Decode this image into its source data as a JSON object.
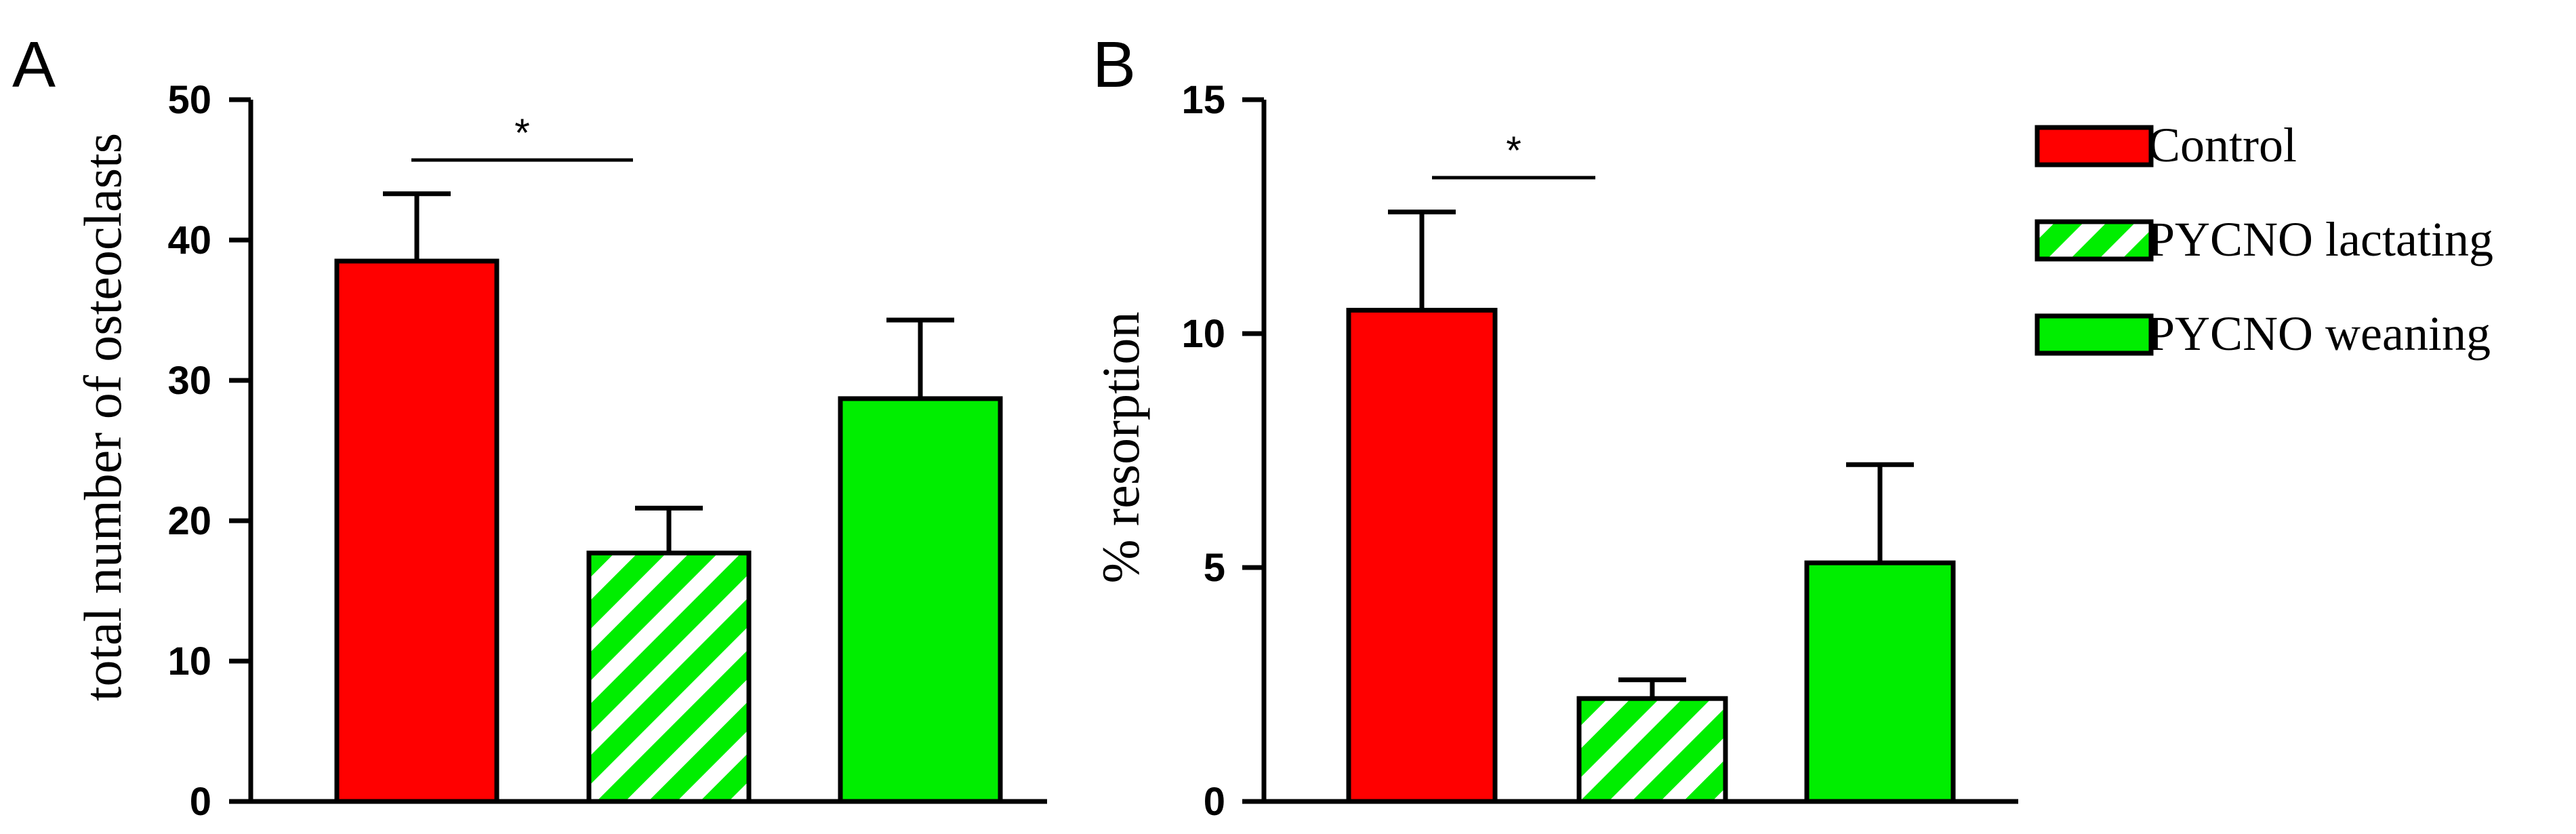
{
  "chart_data": [
    {
      "type": "bar",
      "panel": "A",
      "ylabel": "total number of osteoclasts",
      "xlabel": "",
      "ylim": [
        0,
        50
      ],
      "yticks": [
        0,
        10,
        20,
        30,
        40,
        50
      ],
      "categories": [
        "Control",
        "PYCNO lactating",
        "PYCNO weaning"
      ],
      "values": [
        38.5,
        17.7,
        28.7
      ],
      "errors": [
        4.8,
        3.2,
        5.6
      ],
      "significance": [
        {
          "from": 0,
          "to": 1,
          "label": "*"
        }
      ]
    },
    {
      "type": "bar",
      "panel": "B",
      "ylabel": "% resorption",
      "xlabel": "",
      "ylim": [
        0,
        15
      ],
      "yticks": [
        0,
        5,
        10,
        15
      ],
      "categories": [
        "Control",
        "PYCNO lactating",
        "PYCNO weaning"
      ],
      "values": [
        10.5,
        2.2,
        5.1
      ],
      "errors": [
        2.1,
        0.4,
        2.1
      ],
      "significance": [
        {
          "from": 0,
          "to": 1,
          "label": "*"
        }
      ]
    }
  ],
  "legend": {
    "placement": "right",
    "items": [
      {
        "label": "Control",
        "fill": "#ff0000",
        "pattern": "solid"
      },
      {
        "label": "PYCNO lactating",
        "fill": "#00ee00",
        "pattern": "hatched"
      },
      {
        "label": "PYCNO weaning",
        "fill": "#00ee00",
        "pattern": "solid"
      }
    ]
  },
  "colors": {
    "control": "#ff0000",
    "pycno": "#00ee00",
    "hatch_bg": "#ffffff",
    "stroke": "#000000"
  }
}
